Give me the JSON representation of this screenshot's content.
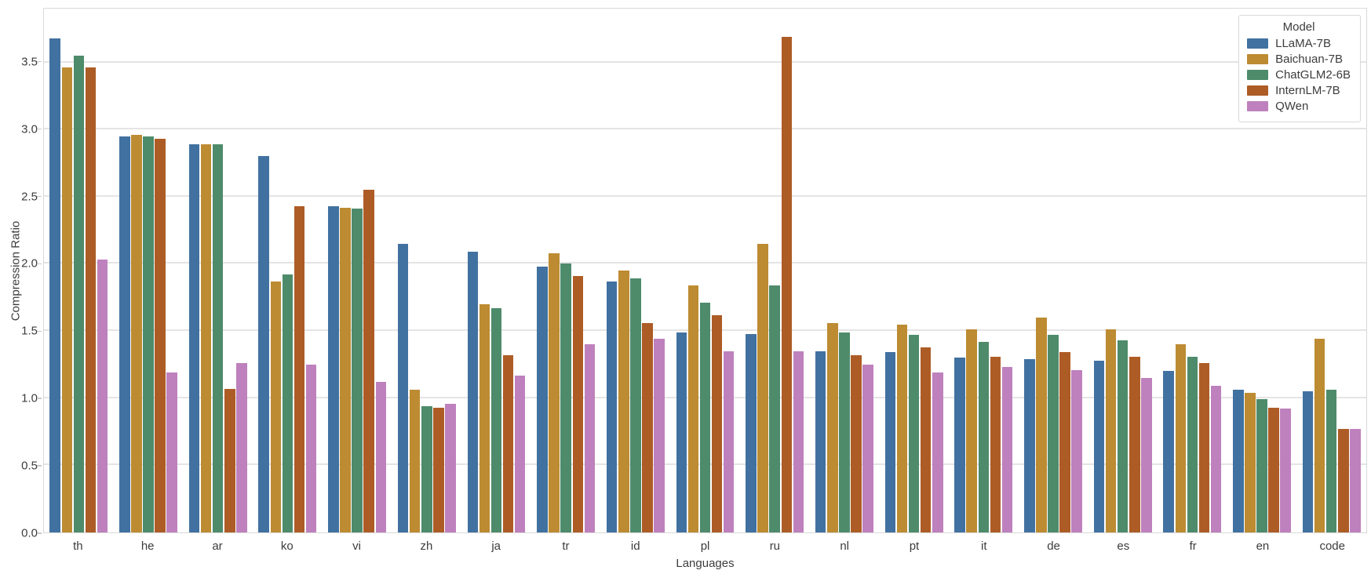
{
  "chart_data": {
    "type": "bar",
    "title": "",
    "xlabel": "Languages",
    "ylabel": "Compression Ratio",
    "ylim": [
      0,
      3.9
    ],
    "ytick_labels": [
      "0.0",
      "0.5",
      "1.0",
      "1.5",
      "2.0",
      "2.5",
      "3.0",
      "3.5"
    ],
    "ytick_values": [
      0,
      0.5,
      1.0,
      1.5,
      2.0,
      2.5,
      3.0,
      3.5
    ],
    "grid": true,
    "legend_position": "upper right",
    "legend_title": "Model",
    "categories": [
      "th",
      "he",
      "ar",
      "ko",
      "vi",
      "zh",
      "ja",
      "tr",
      "id",
      "pl",
      "ru",
      "nl",
      "pt",
      "it",
      "de",
      "es",
      "fr",
      "en",
      "code"
    ],
    "series": [
      {
        "name": "LLaMA-7B",
        "color": "#4171A0",
        "values": [
          3.68,
          2.95,
          2.89,
          2.8,
          2.43,
          2.15,
          2.09,
          1.98,
          1.87,
          1.49,
          1.48,
          1.35,
          1.34,
          1.3,
          1.29,
          1.28,
          1.2,
          1.06,
          1.05
        ]
      },
      {
        "name": "Baichuan-7B",
        "color": "#BD8B32",
        "values": [
          3.46,
          2.96,
          2.89,
          1.87,
          2.42,
          1.06,
          1.7,
          2.08,
          1.95,
          1.84,
          2.15,
          1.56,
          1.55,
          1.51,
          1.6,
          1.51,
          1.4,
          1.04,
          1.44
        ]
      },
      {
        "name": "ChatGLM2-6B",
        "color": "#4E8B6B",
        "values": [
          3.55,
          2.95,
          2.89,
          1.92,
          2.41,
          0.94,
          1.67,
          2.0,
          1.89,
          1.71,
          1.84,
          1.49,
          1.47,
          1.42,
          1.47,
          1.43,
          1.31,
          0.99,
          1.06
        ]
      },
      {
        "name": "InternLM-7B",
        "color": "#AD5C26",
        "values": [
          3.46,
          2.93,
          1.07,
          2.43,
          2.55,
          0.93,
          1.32,
          1.91,
          1.56,
          1.62,
          3.69,
          1.32,
          1.38,
          1.31,
          1.34,
          1.31,
          1.26,
          0.93,
          0.77
        ]
      },
      {
        "name": "QWen",
        "color": "#BE81BD",
        "values": [
          2.03,
          1.19,
          1.26,
          1.25,
          1.12,
          0.96,
          1.17,
          1.4,
          1.44,
          1.35,
          1.35,
          1.25,
          1.19,
          1.23,
          1.21,
          1.15,
          1.09,
          0.92,
          0.77
        ]
      }
    ]
  }
}
